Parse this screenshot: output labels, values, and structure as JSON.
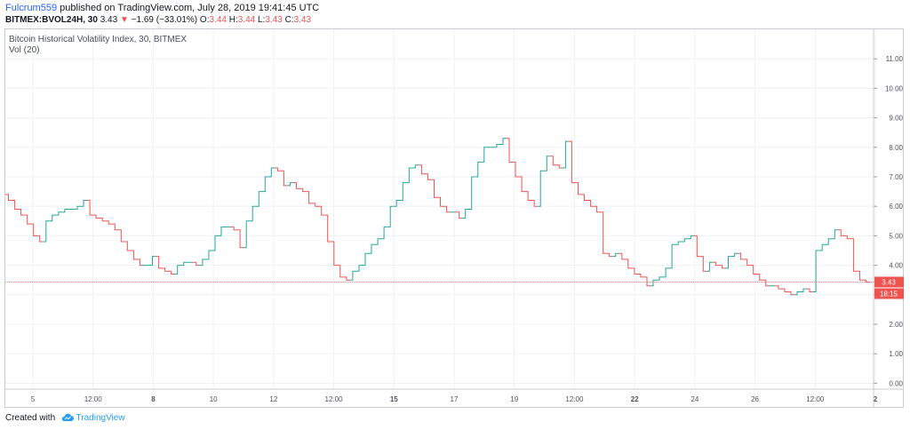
{
  "header": {
    "author": "Fulcrum559",
    "published_text": "published on TradingView.com, July 28, 2019 19:41:45 UTC"
  },
  "quote": {
    "symbol": "BITMEX:BVOL24H, 30",
    "last": "3.43",
    "arrow": "▼",
    "change": "−1.69 (−33.01%)",
    "o_label": "O:",
    "o_value": "3.44",
    "h_label": "H:",
    "h_value": "3.44",
    "l_label": "L:",
    "l_value": "3.43",
    "c_label": "C:",
    "c_value": "3.43"
  },
  "legend": {
    "title": "Bitcoin Historical Volatility Index, 30, BITMEX",
    "indicator": "Vol (20)"
  },
  "footer": {
    "created_with": "Created with",
    "brand": "TradingView",
    "brand_icon": "tradingview-cloud-logo-icon"
  },
  "colors": {
    "up": "#26a69a",
    "down": "#ef5350",
    "grid": "#eef0f3",
    "axis_text": "#50535e",
    "price_line": "#ef5350"
  },
  "chart_data": {
    "type": "line",
    "title": "Bitcoin Historical Volatility Index, 30, BITMEX",
    "xlabel": "",
    "ylabel": "",
    "ylim": [
      -0.2,
      12.0
    ],
    "yticks": [
      "0.00",
      "1.00",
      "2.00",
      "3.00",
      "4.00",
      "5.00",
      "6.00",
      "7.00",
      "8.00",
      "9.00",
      "10.00",
      "11.00"
    ],
    "xticks": [
      {
        "label": "5",
        "bold": false
      },
      {
        "label": "12:00",
        "bold": false
      },
      {
        "label": "8",
        "bold": true
      },
      {
        "label": "10",
        "bold": false
      },
      {
        "label": "12",
        "bold": false
      },
      {
        "label": "12:00",
        "bold": false
      },
      {
        "label": "15",
        "bold": true
      },
      {
        "label": "17",
        "bold": false
      },
      {
        "label": "19",
        "bold": false
      },
      {
        "label": "12:00",
        "bold": false
      },
      {
        "label": "22",
        "bold": true
      },
      {
        "label": "24",
        "bold": false
      },
      {
        "label": "26",
        "bold": false
      },
      {
        "label": "12:00",
        "bold": false
      },
      {
        "label": "2",
        "bold": true
      }
    ],
    "last_price": "3.43",
    "countdown": "18:15",
    "grid": true,
    "legend": "top-left",
    "series": [
      {
        "values": [
          6.4,
          6.2,
          5.9,
          5.7,
          5.4,
          5.0,
          4.8,
          5.5,
          5.7,
          5.8,
          5.9,
          5.9,
          6.0,
          6.2,
          5.7,
          5.6,
          5.5,
          5.4,
          5.2,
          4.8,
          4.5,
          4.2,
          4.0,
          4.0,
          4.3,
          3.9,
          3.8,
          3.7,
          4.0,
          4.1,
          4.1,
          4.0,
          4.2,
          4.5,
          5.0,
          5.3,
          5.3,
          5.2,
          4.6,
          5.5,
          6.0,
          6.5,
          7.0,
          7.3,
          7.2,
          6.7,
          6.8,
          6.6,
          6.5,
          6.1,
          6.0,
          5.7,
          4.8,
          4.0,
          3.6,
          3.5,
          3.8,
          4.0,
          4.4,
          4.7,
          4.9,
          5.3,
          6.0,
          6.2,
          6.8,
          7.3,
          7.4,
          7.1,
          6.9,
          6.3,
          6.0,
          5.8,
          5.8,
          5.6,
          5.9,
          7.0,
          7.5,
          8.0,
          8.0,
          8.1,
          8.3,
          7.5,
          7.0,
          6.5,
          6.2,
          6.0,
          7.2,
          7.7,
          7.4,
          7.3,
          8.2,
          6.8,
          6.4,
          6.2,
          6.0,
          5.8,
          4.4,
          4.3,
          4.4,
          4.2,
          3.9,
          3.7,
          3.6,
          3.3,
          3.5,
          3.6,
          3.9,
          4.7,
          4.8,
          4.9,
          5.0,
          4.3,
          3.8,
          4.1,
          4.0,
          3.9,
          4.3,
          4.4,
          4.2,
          4.0,
          3.7,
          3.5,
          3.3,
          3.3,
          3.2,
          3.1,
          3.0,
          3.1,
          3.2,
          3.1,
          4.5,
          4.7,
          4.9,
          5.2,
          5.0,
          4.9,
          3.8,
          3.5,
          3.43
        ]
      }
    ]
  }
}
